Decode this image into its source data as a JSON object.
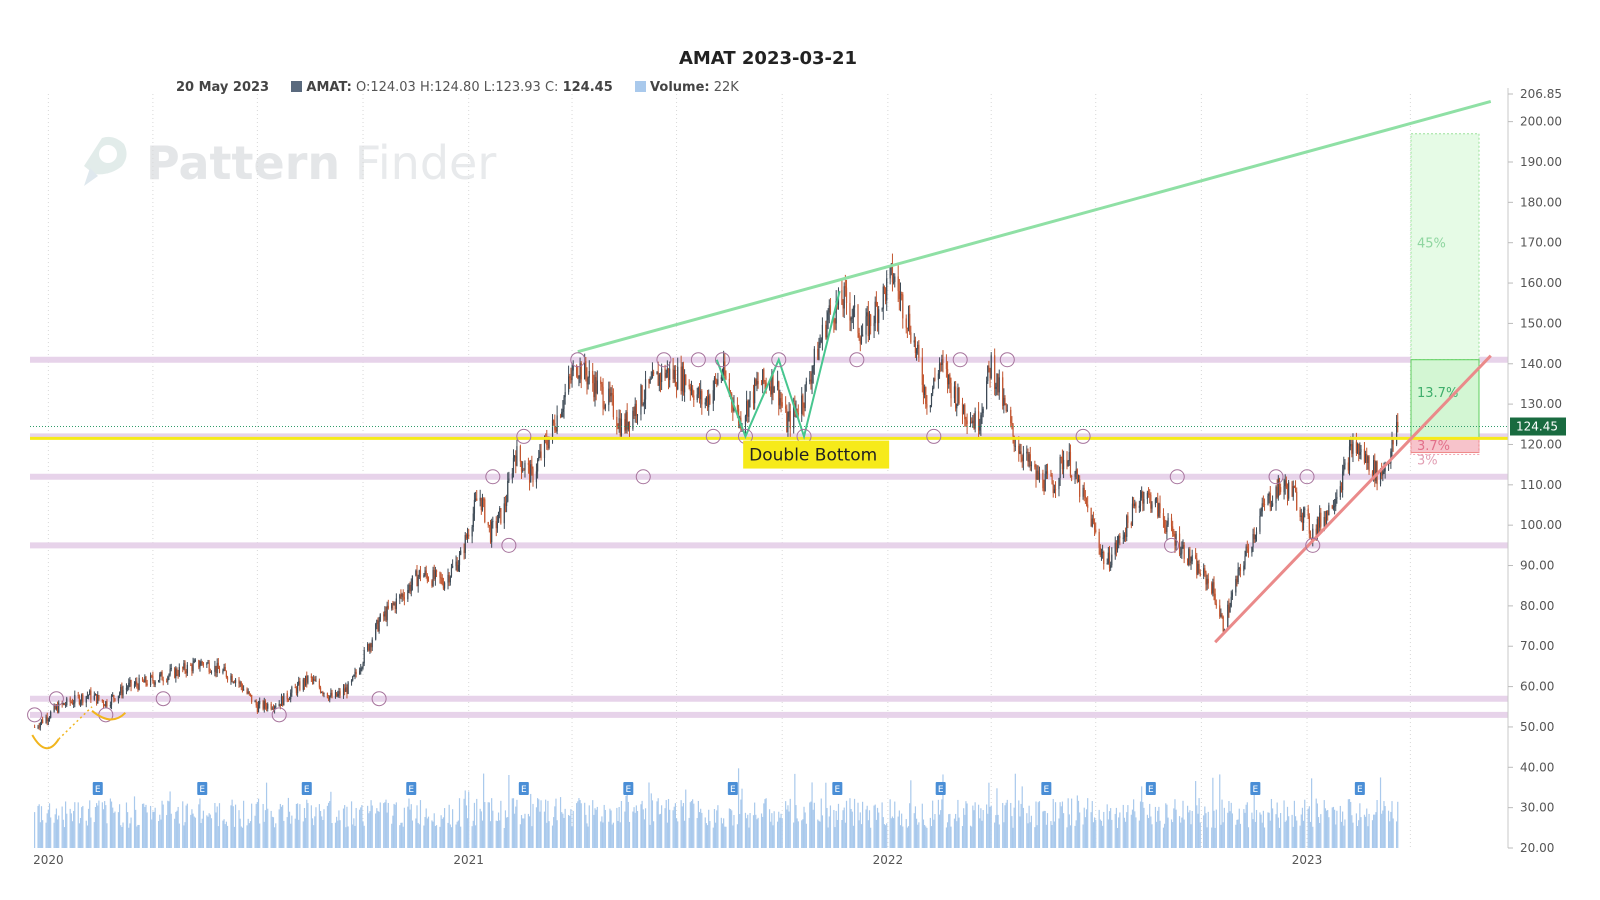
{
  "title": "AMAT 2023-03-21",
  "legend": {
    "date": "20 May 2023",
    "ticker_label": "AMAT:",
    "ohlc": "O:124.03 H:124.80 L:123.93",
    "close_prefix": "C:",
    "close_value": "124.45",
    "volume_label": "Volume:",
    "volume_value": "22K"
  },
  "watermark": {
    "word1": "Pattern",
    "word2": "Finder"
  },
  "colors": {
    "up": "#3d4a56",
    "down": "#c2552f",
    "volume": "#a9c9ec",
    "support": "#e7d3ea",
    "key_level": "#f6ea1a",
    "upper_trend": "#8fe0a5",
    "lower_trend": "#ea8a8a",
    "double_bottom_line": "#47c68f",
    "target_zone": "#e6fbe6",
    "stop_zone": "#f7c3cb",
    "earnings_marker": "#4a8ed6"
  },
  "chart_data": {
    "type": "candlestick",
    "title": "AMAT 2023-03-21",
    "pattern_label": "Double Bottom",
    "last_price": "124.45",
    "y_axis": {
      "min": 20,
      "max": 206.85,
      "side": "right",
      "ticks": [
        "206.85",
        "200.00",
        "190.00",
        "180.00",
        "170.00",
        "160.00",
        "150.00",
        "140.00",
        "130.00",
        "120.00",
        "110.00",
        "100.00",
        "90.00",
        "80.00",
        "70.00",
        "60.00",
        "50.00",
        "40.00",
        "30.00",
        "20.00"
      ]
    },
    "x_axis": {
      "ticks": [
        "2020",
        "2021",
        "2022",
        "2023"
      ]
    },
    "grid": true,
    "price_path": [
      [
        "2019-12-20",
        50
      ],
      [
        "2020-01-10",
        55
      ],
      [
        "2020-02-05",
        58
      ],
      [
        "2020-02-20",
        56
      ],
      [
        "2020-03-10",
        60
      ],
      [
        "2020-03-25",
        61
      ],
      [
        "2020-04-15",
        63
      ],
      [
        "2020-05-15",
        66
      ],
      [
        "2020-06-12",
        62
      ],
      [
        "2020-07-01",
        55
      ],
      [
        "2020-07-20",
        56
      ],
      [
        "2020-08-15",
        62
      ],
      [
        "2020-09-05",
        57
      ],
      [
        "2020-09-20",
        60
      ],
      [
        "2020-10-15",
        76
      ],
      [
        "2020-11-20",
        88
      ],
      [
        "2020-12-10",
        86
      ],
      [
        "2020-12-25",
        92
      ],
      [
        "2021-01-10",
        108
      ],
      [
        "2021-01-20",
        98
      ],
      [
        "2021-02-01",
        104
      ],
      [
        "2021-02-10",
        118
      ],
      [
        "2021-02-25",
        112
      ],
      [
        "2021-03-15",
        124
      ],
      [
        "2021-04-05",
        140
      ],
      [
        "2021-04-20",
        135
      ],
      [
        "2021-05-05",
        130
      ],
      [
        "2021-05-15",
        124
      ],
      [
        "2021-06-01",
        132
      ],
      [
        "2021-06-20",
        138
      ],
      [
        "2021-07-10",
        136
      ],
      [
        "2021-07-25",
        130
      ],
      [
        "2021-08-10",
        138
      ],
      [
        "2021-08-25",
        126
      ],
      [
        "2021-09-10",
        135
      ],
      [
        "2021-09-25",
        136
      ],
      [
        "2021-10-05",
        125
      ],
      [
        "2021-10-20",
        132
      ],
      [
        "2021-11-10",
        152
      ],
      [
        "2021-11-25",
        156
      ],
      [
        "2021-12-10",
        147
      ],
      [
        "2021-12-25",
        155
      ],
      [
        "2022-01-05",
        162
      ],
      [
        "2022-01-20",
        150
      ],
      [
        "2022-02-05",
        130
      ],
      [
        "2022-02-15",
        140
      ],
      [
        "2022-03-05",
        130
      ],
      [
        "2022-03-20",
        125
      ],
      [
        "2022-04-01",
        140
      ],
      [
        "2022-04-20",
        122
      ],
      [
        "2022-05-10",
        112
      ],
      [
        "2022-05-25",
        110
      ],
      [
        "2022-06-05",
        118
      ],
      [
        "2022-06-25",
        103
      ],
      [
        "2022-07-10",
        90
      ],
      [
        "2022-07-25",
        98
      ],
      [
        "2022-08-10",
        108
      ],
      [
        "2022-08-20",
        106
      ],
      [
        "2022-09-05",
        98
      ],
      [
        "2022-09-25",
        90
      ],
      [
        "2022-10-10",
        85
      ],
      [
        "2022-10-20",
        75
      ],
      [
        "2022-11-05",
        90
      ],
      [
        "2022-11-25",
        105
      ],
      [
        "2022-12-10",
        110
      ],
      [
        "2022-12-20",
        108
      ],
      [
        "2023-01-05",
        98
      ],
      [
        "2023-01-20",
        104
      ],
      [
        "2023-02-01",
        112
      ],
      [
        "2023-02-10",
        120
      ],
      [
        "2023-02-25",
        115
      ],
      [
        "2023-03-05",
        112
      ],
      [
        "2023-03-15",
        118
      ],
      [
        "2023-03-21",
        124.45
      ]
    ],
    "support_levels": [
      141,
      122,
      112,
      95,
      57,
      53
    ],
    "key_level": 121.5,
    "upper_trendline": {
      "from": [
        "2021-04-06",
        143
      ],
      "to": [
        "2023-06-10",
        205
      ]
    },
    "lower_trendline": {
      "from": [
        "2022-10-13",
        71
      ],
      "to": [
        "2023-06-10",
        142
      ]
    },
    "projection_zones": [
      {
        "label": "45%",
        "low": 141,
        "high": 197
      },
      {
        "label": "13.7%",
        "low": 121.5,
        "high": 141
      },
      {
        "label": "3.7%",
        "low": 118,
        "high": 121.5
      },
      {
        "label": "3%",
        "low": 117.5,
        "high": 121.5
      }
    ],
    "volume": {
      "unit": "shares",
      "last": "22K"
    },
    "earnings_markers": [
      "2020-02-13",
      "2020-05-14",
      "2020-08-13",
      "2020-11-12",
      "2021-02-18",
      "2021-05-20",
      "2021-08-19",
      "2021-11-18",
      "2022-02-16",
      "2022-05-19",
      "2022-08-18",
      "2022-11-17",
      "2023-02-16"
    ]
  }
}
